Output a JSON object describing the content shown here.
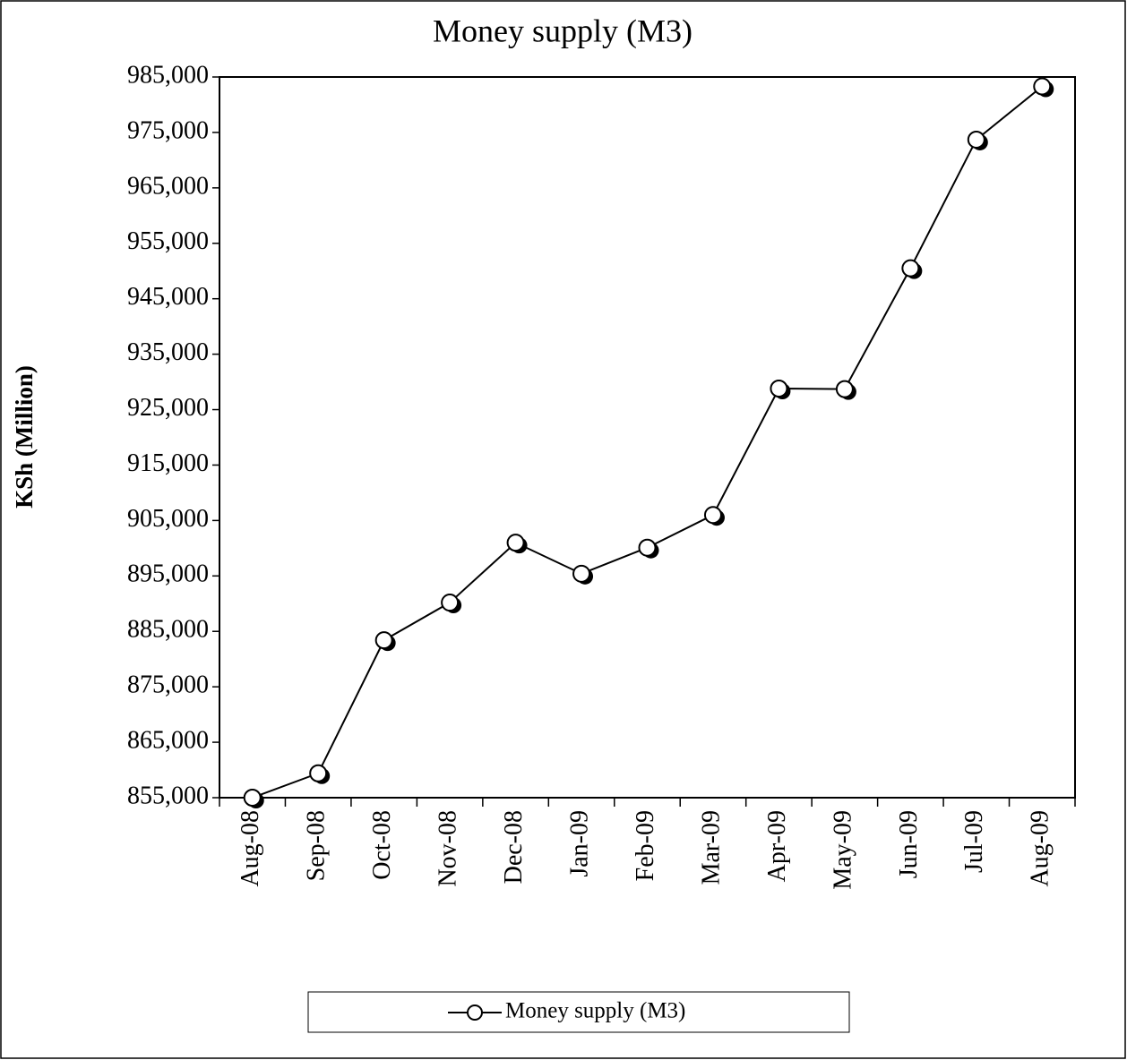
{
  "chart_data": {
    "type": "line",
    "title": "Money supply (M3)",
    "y_label": "KSh (Million)",
    "categories": [
      "Aug-08",
      "Sep-08",
      "Oct-08",
      "Nov-08",
      "Dec-08",
      "Jan-09",
      "Feb-09",
      "Mar-09",
      "Apr-09",
      "May-09",
      "Jun-09",
      "Jul-09",
      "Aug-09"
    ],
    "series": [
      {
        "name": "Money supply (M3)",
        "color": "#000000",
        "values": [
          855000,
          859400,
          883400,
          890200,
          901000,
          895400,
          900100,
          906000,
          928800,
          928700,
          950500,
          973700,
          983300
        ]
      }
    ],
    "ylim": [
      855000,
      985000
    ],
    "yticks": [
      {
        "value": 855000,
        "label": "855,000"
      },
      {
        "value": 865000,
        "label": "865,000"
      },
      {
        "value": 875000,
        "label": "875,000"
      },
      {
        "value": 885000,
        "label": "885,000"
      },
      {
        "value": 895000,
        "label": "895,000"
      },
      {
        "value": 905000,
        "label": "905,000"
      },
      {
        "value": 915000,
        "label": "915,000"
      },
      {
        "value": 925000,
        "label": "925,000"
      },
      {
        "value": 935000,
        "label": "935,000"
      },
      {
        "value": 945000,
        "label": "945,000"
      },
      {
        "value": 955000,
        "label": "955,000"
      },
      {
        "value": 965000,
        "label": "965,000"
      },
      {
        "value": 975000,
        "label": "975,000"
      },
      {
        "value": 985000,
        "label": "985,000"
      }
    ],
    "legend": "bottom"
  }
}
